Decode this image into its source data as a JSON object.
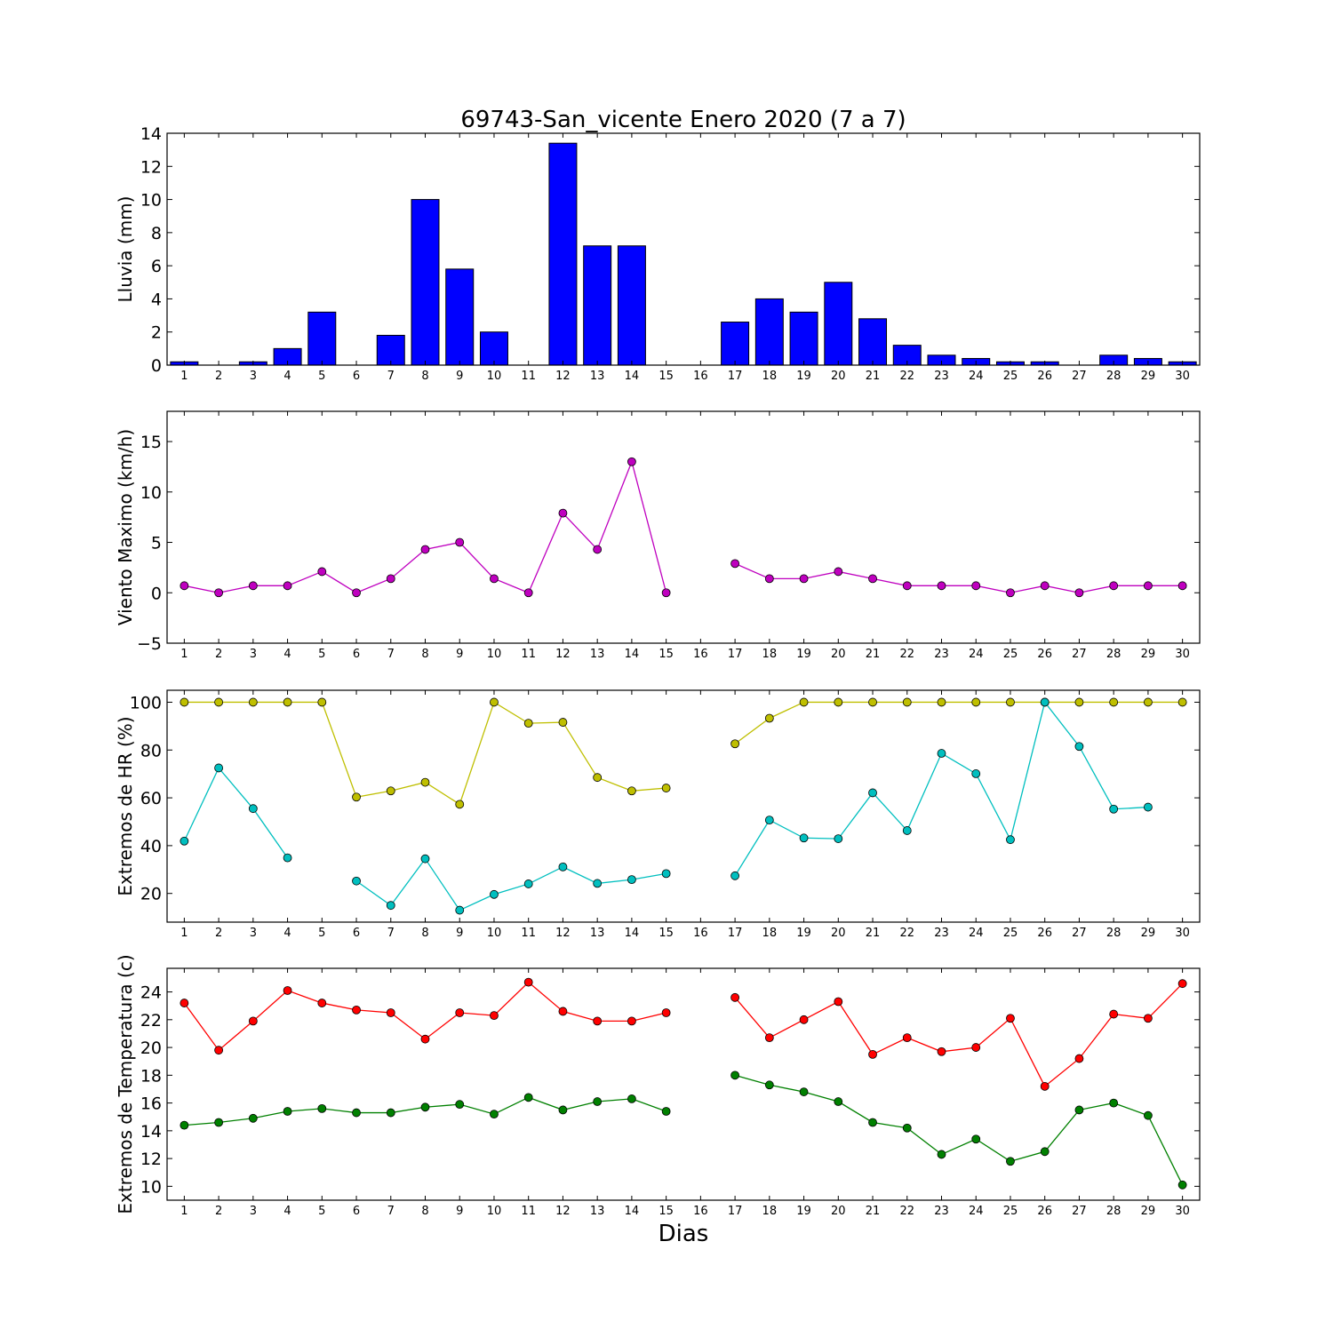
{
  "title": "69743-San_vicente Enero 2020  (7 a 7)",
  "xlabel": "Dias",
  "colors": {
    "rain": "#0000ff",
    "wind": "#bf00bf",
    "hr_max": "#bfbf00",
    "hr_min": "#00bfbf",
    "temp_max": "#ff0000",
    "temp_min": "#008000"
  },
  "chart_data": [
    {
      "type": "bar",
      "ylabel": "Lluvia (mm)",
      "ylim": [
        0,
        14
      ],
      "yticks": [
        0,
        2,
        4,
        6,
        8,
        10,
        12,
        14
      ],
      "categories": [
        "1",
        "2",
        "3",
        "4",
        "5",
        "6",
        "7",
        "8",
        "9",
        "10",
        "11",
        "12",
        "13",
        "14",
        "15",
        "16",
        "17",
        "18",
        "19",
        "20",
        "21",
        "22",
        "23",
        "24",
        "25",
        "26",
        "27",
        "28",
        "29",
        "30"
      ],
      "series": [
        {
          "color": "#0000ff",
          "values": [
            0.2,
            0,
            0.2,
            1.0,
            3.2,
            0,
            1.8,
            10.0,
            5.8,
            2.0,
            0,
            13.4,
            7.2,
            7.2,
            0,
            0,
            2.6,
            4.0,
            3.2,
            5.0,
            2.8,
            1.2,
            0.6,
            0.4,
            0.2,
            0.2,
            0,
            0.6,
            0.4,
            0.2
          ]
        }
      ]
    },
    {
      "type": "line",
      "ylabel": "Viento Maximo (km/h)",
      "ylim": [
        -5,
        18
      ],
      "yticks": [
        -5,
        0,
        5,
        10,
        15
      ],
      "ytick_labels": [
        "−5",
        "0",
        "5",
        "10",
        "15"
      ],
      "categories": [
        "1",
        "2",
        "3",
        "4",
        "5",
        "6",
        "7",
        "8",
        "9",
        "10",
        "11",
        "12",
        "13",
        "14",
        "15",
        "16",
        "17",
        "18",
        "19",
        "20",
        "21",
        "22",
        "23",
        "24",
        "25",
        "26",
        "27",
        "28",
        "29",
        "30"
      ],
      "series": [
        {
          "color": "#bf00bf",
          "values": [
            0.7,
            0,
            0.7,
            0.7,
            2.1,
            0,
            1.4,
            4.3,
            5.0,
            1.4,
            0,
            7.9,
            4.3,
            13.0,
            0,
            null,
            2.9,
            1.4,
            1.4,
            2.1,
            1.4,
            0.7,
            0.7,
            0.7,
            0,
            0.7,
            0,
            0.7,
            0.7,
            0.7
          ]
        }
      ]
    },
    {
      "type": "line",
      "ylabel": "Extremos de HR (%)",
      "ylim": [
        8,
        105
      ],
      "yticks": [
        20,
        40,
        60,
        80,
        100
      ],
      "categories": [
        "1",
        "2",
        "3",
        "4",
        "5",
        "6",
        "7",
        "8",
        "9",
        "10",
        "11",
        "12",
        "13",
        "14",
        "15",
        "16",
        "17",
        "18",
        "19",
        "20",
        "21",
        "22",
        "23",
        "24",
        "25",
        "26",
        "27",
        "28",
        "29",
        "30"
      ],
      "series": [
        {
          "color": "#bfbf00",
          "values": [
            100,
            100,
            100,
            100,
            100,
            60.3,
            62.9,
            66.5,
            57.3,
            100,
            91.2,
            91.6,
            68.5,
            62.9,
            64.1,
            null,
            82.6,
            93.3,
            100,
            100,
            100,
            100,
            100,
            100,
            100,
            100,
            100,
            100,
            100,
            100
          ]
        },
        {
          "color": "#00bfbf",
          "values": [
            41.9,
            72.5,
            55.5,
            34.9,
            null,
            25.2,
            15.0,
            34.5,
            13.0,
            19.6,
            24.0,
            31.1,
            24.2,
            25.8,
            28.3,
            null,
            27.4,
            50.7,
            43.2,
            42.9,
            62.1,
            46.3,
            78.6,
            70.1,
            42.5,
            100,
            81.5,
            55.3,
            56.1,
            null
          ]
        }
      ]
    },
    {
      "type": "line",
      "ylabel": "Extremos de Temperatura (c)",
      "ylim": [
        9,
        25.7
      ],
      "yticks": [
        10,
        12,
        14,
        16,
        18,
        20,
        22,
        24
      ],
      "categories": [
        "1",
        "2",
        "3",
        "4",
        "5",
        "6",
        "7",
        "8",
        "9",
        "10",
        "11",
        "12",
        "13",
        "14",
        "15",
        "16",
        "17",
        "18",
        "19",
        "20",
        "21",
        "22",
        "23",
        "24",
        "25",
        "26",
        "27",
        "28",
        "29",
        "30"
      ],
      "series": [
        {
          "color": "#ff0000",
          "values": [
            23.2,
            19.8,
            21.9,
            24.1,
            23.2,
            22.7,
            22.5,
            20.6,
            22.5,
            22.3,
            24.7,
            22.6,
            21.9,
            21.9,
            22.5,
            null,
            23.6,
            20.7,
            22.0,
            23.3,
            19.5,
            20.7,
            19.7,
            20.0,
            22.1,
            17.2,
            19.2,
            22.4,
            22.1,
            24.6
          ]
        },
        {
          "color": "#008000",
          "values": [
            14.4,
            14.6,
            14.9,
            15.4,
            15.6,
            15.3,
            15.3,
            15.7,
            15.9,
            15.2,
            16.4,
            15.5,
            16.1,
            16.3,
            15.4,
            null,
            18.0,
            17.3,
            16.8,
            16.1,
            14.6,
            14.2,
            12.3,
            13.4,
            11.8,
            12.5,
            15.5,
            16.0,
            15.1,
            10.1
          ]
        }
      ]
    }
  ]
}
